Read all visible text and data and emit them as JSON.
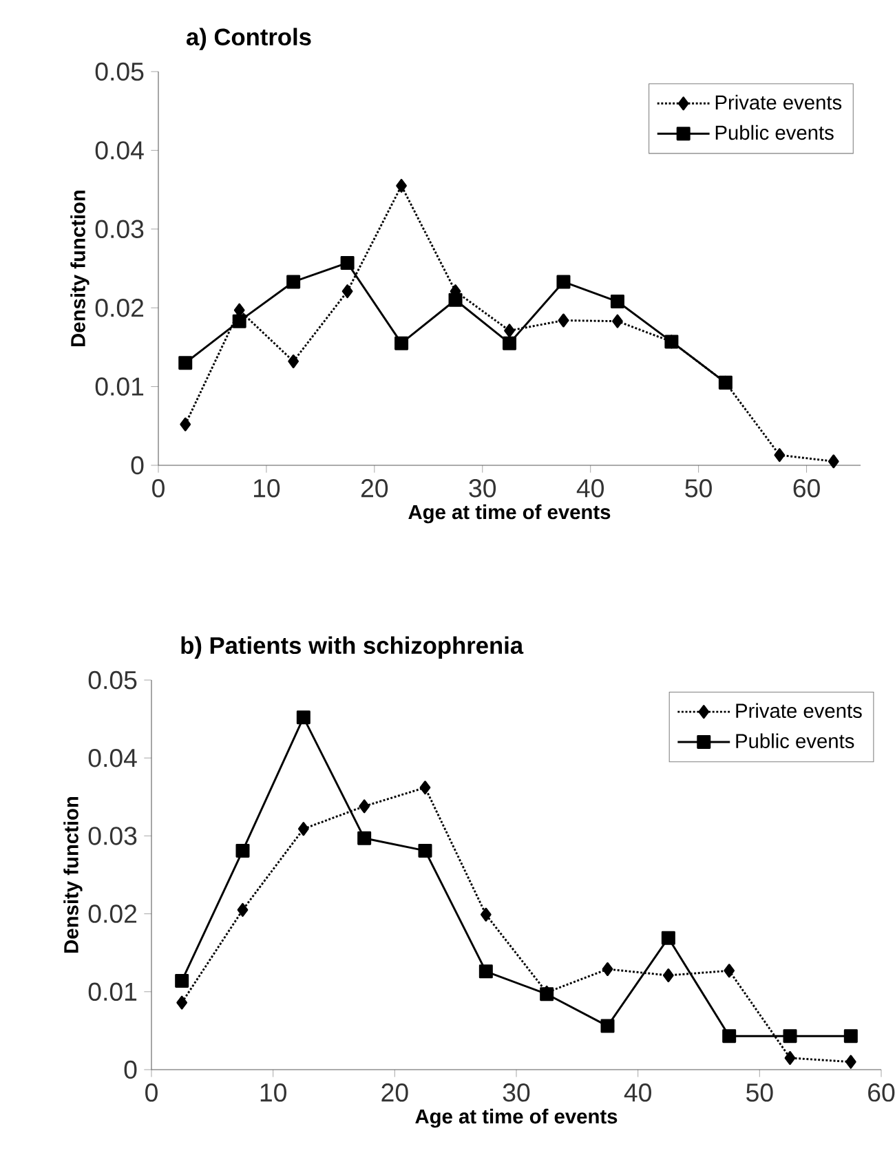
{
  "chart_data": [
    {
      "type": "line",
      "title": "a) Controls",
      "xlabel": "Age at time of events",
      "ylabel": "Density function",
      "xlim": [
        0,
        65
      ],
      "ylim": [
        0,
        0.05
      ],
      "xticks": [
        0,
        10,
        20,
        30,
        40,
        50,
        60
      ],
      "yticks": [
        0,
        0.01,
        0.02,
        0.03,
        0.04,
        0.05
      ],
      "legend": "top right",
      "series": [
        {
          "name": "Private events",
          "color": "#000000",
          "marker": "diamond",
          "line_style": "dotted",
          "x": [
            2.5,
            7.5,
            12.5,
            17.5,
            22.5,
            27.5,
            32.5,
            37.5,
            42.5,
            47.5,
            52.5,
            57.5,
            62.5
          ],
          "values": [
            0.0052,
            0.0197,
            0.0132,
            0.0221,
            0.0355,
            0.0221,
            0.0171,
            0.0184,
            0.0183,
            0.0157,
            0.0105,
            0.0013,
            0.0005
          ]
        },
        {
          "name": "Public events",
          "color": "#000000",
          "marker": "square",
          "line_style": "solid",
          "x": [
            2.5,
            7.5,
            12.5,
            17.5,
            22.5,
            27.5,
            32.5,
            37.5,
            42.5,
            47.5,
            52.5
          ],
          "values": [
            0.013,
            0.0183,
            0.0233,
            0.0257,
            0.0155,
            0.021,
            0.0155,
            0.0233,
            0.0208,
            0.0157,
            0.0105
          ]
        }
      ]
    },
    {
      "type": "line",
      "title": "b) Patients with schizophrenia",
      "xlabel": "Age at time of events",
      "ylabel": "Density function",
      "xlim": [
        0,
        60
      ],
      "ylim": [
        0,
        0.05
      ],
      "xticks": [
        0,
        10,
        20,
        30,
        40,
        50,
        60
      ],
      "yticks": [
        0,
        0.01,
        0.02,
        0.03,
        0.04,
        0.05
      ],
      "legend": "top right",
      "series": [
        {
          "name": "Private events",
          "color": "#000000",
          "marker": "diamond",
          "line_style": "dotted",
          "x": [
            2.5,
            7.5,
            12.5,
            17.5,
            22.5,
            27.5,
            32.5,
            37.5,
            42.5,
            47.5,
            52.5,
            57.5
          ],
          "values": [
            0.0086,
            0.0205,
            0.0309,
            0.0338,
            0.0362,
            0.0199,
            0.0099,
            0.0129,
            0.0121,
            0.0127,
            0.0015,
            0.001
          ]
        },
        {
          "name": "Public events",
          "color": "#000000",
          "marker": "square",
          "line_style": "solid",
          "x": [
            2.5,
            7.5,
            12.5,
            17.5,
            22.5,
            27.5,
            32.5,
            37.5,
            42.5,
            47.5,
            52.5,
            57.5
          ],
          "values": [
            0.0114,
            0.0281,
            0.0452,
            0.0297,
            0.0281,
            0.0126,
            0.0097,
            0.0056,
            0.0169,
            0.0043,
            0.0043,
            0.0043
          ]
        }
      ]
    }
  ]
}
